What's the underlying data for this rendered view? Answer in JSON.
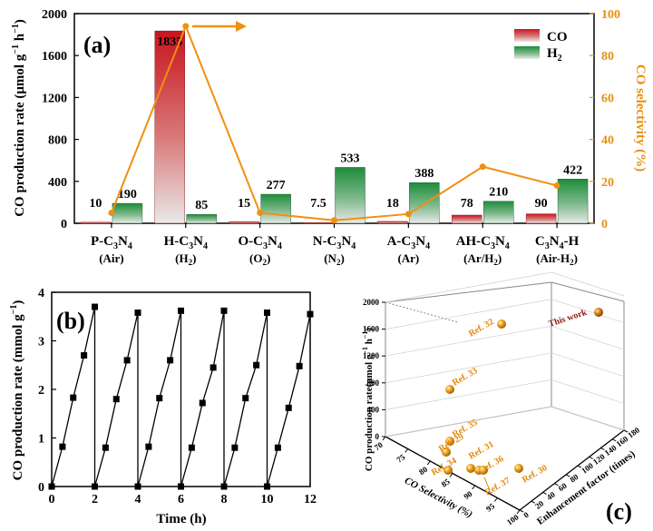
{
  "panels": {
    "a_label": "(a)",
    "b_label": "(b)",
    "c_label": "(c)"
  },
  "colors": {
    "co": "#c8141e",
    "h2": "#1e8c3c",
    "selectivity": "#f0900f",
    "ref_points": "#e89a1a",
    "this_work": "#8b1a10"
  },
  "chart_data": [
    {
      "type": "bar",
      "panel": "(a)",
      "categories": [
        "P-C3N4",
        "H-C3N4",
        "O-C3N4",
        "N-C3N4",
        "A-C3N4",
        "AH-C3N4",
        "C3N4-H"
      ],
      "category_main": [
        "P-C",
        "H-C",
        "O-C",
        "N-C",
        "A-C",
        "AH-C",
        "C"
      ],
      "category_suffix": [
        "",
        "",
        "",
        "",
        "",
        "",
        "-H"
      ],
      "category_sub": [
        "(Air)",
        "(H2)",
        "(O2)",
        "(N2)",
        "(Ar)",
        "(Ar/H2)",
        "(Air-H2)"
      ],
      "series": [
        {
          "name": "CO",
          "values": [
            10,
            1835,
            15,
            7.5,
            18,
            78,
            90
          ],
          "labels": [
            "10",
            "1835",
            "15",
            "7.5",
            "18",
            "78",
            "90"
          ]
        },
        {
          "name": "H2",
          "values": [
            190,
            85,
            277,
            533,
            388,
            210,
            422
          ],
          "labels": [
            "190",
            "85",
            "277",
            "533",
            "388",
            "210",
            "422"
          ]
        }
      ],
      "selectivity": {
        "values": [
          5,
          94,
          5,
          1.4,
          4.4,
          27,
          18
        ]
      },
      "ylabel": "CO production rate (μmol g⁻¹ h⁻¹)",
      "y2label": "CO selectivity (%)",
      "ylim": [
        0,
        2000
      ],
      "y2lim": [
        0,
        100
      ],
      "yticks": [
        "0",
        "400",
        "800",
        "1200",
        "1600",
        "2000"
      ],
      "y2ticks": [
        "0",
        "20",
        "40",
        "60",
        "80",
        "100"
      ],
      "legend_position": "top-right"
    },
    {
      "type": "line",
      "panel": "(b)",
      "x": [
        0,
        0.5,
        1,
        1.5,
        2,
        2,
        2.5,
        3,
        3.5,
        4,
        4,
        4.5,
        5,
        5.5,
        6,
        6,
        6.5,
        7,
        7.5,
        8,
        8,
        8.5,
        9,
        9.5,
        10,
        10,
        10.5,
        11,
        11.5,
        12
      ],
      "y": [
        0,
        0.82,
        1.83,
        2.7,
        3.7,
        0,
        0.8,
        1.8,
        2.6,
        3.58,
        0,
        0.82,
        1.82,
        2.6,
        3.62,
        0,
        0.8,
        1.72,
        2.45,
        3.62,
        0,
        0.8,
        1.82,
        2.5,
        3.58,
        0,
        0.8,
        1.62,
        2.48,
        3.55
      ],
      "xlabel": "Time (h)",
      "ylabel": "CO production rate (mmol g⁻¹)",
      "xlim": [
        0,
        12
      ],
      "ylim": [
        0,
        4
      ],
      "xticks": [
        "0",
        "2",
        "4",
        "6",
        "8",
        "10",
        "12"
      ],
      "yticks": [
        "0",
        "1",
        "2",
        "3",
        "4"
      ]
    },
    {
      "type": "scatter",
      "panel": "(c)",
      "points": [
        {
          "label": "This work"
        },
        {
          "label": "Ref. 32"
        },
        {
          "label": "Ref. 33"
        },
        {
          "label": "Ref. 35"
        },
        {
          "label": "Ref. 29"
        },
        {
          "label": "Ref. 34"
        },
        {
          "label": "Ref. 31"
        },
        {
          "label": "Ref. 36"
        },
        {
          "label": "Ref. 37"
        },
        {
          "label": "Ref. 30"
        }
      ],
      "xlabel": "CO Selectivity (%)",
      "ylabel": "Enhancement factor (times)",
      "zlabel": "CO production rate(μmol g⁻¹ h⁻¹)",
      "zticks": [
        "0",
        "400",
        "800",
        "1200",
        "1600",
        "2000"
      ],
      "xticks": [
        "70",
        "75",
        "80",
        "85",
        "90",
        "95",
        "100"
      ],
      "yticks": [
        "0",
        "20",
        "40",
        "60",
        "80",
        "100",
        "120",
        "140",
        "160",
        "180"
      ]
    }
  ]
}
